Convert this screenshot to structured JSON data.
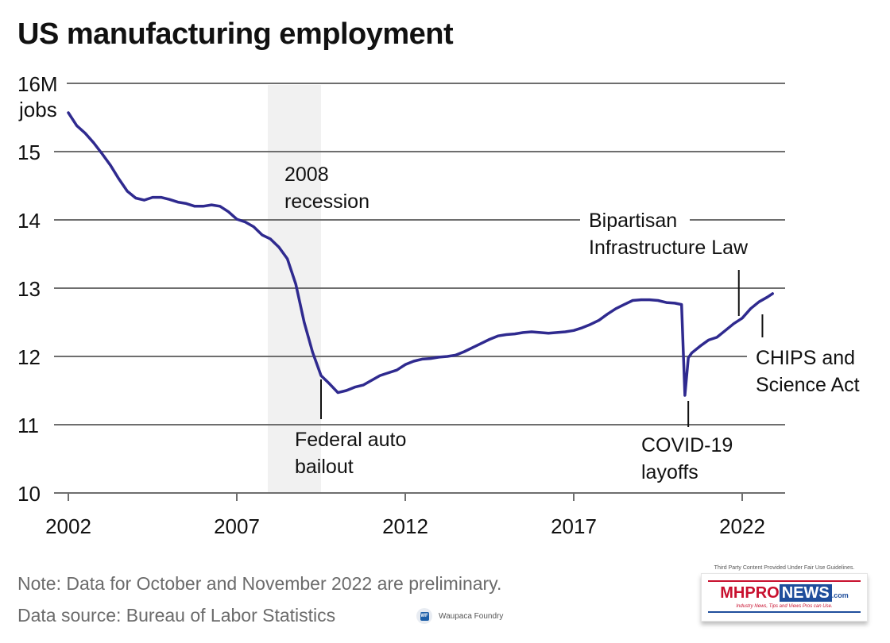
{
  "title": "US manufacturing employment",
  "chart_data": {
    "type": "line",
    "title": "US manufacturing employment",
    "xlabel": "",
    "ylabel": "16M jobs",
    "y_unit_label_top": "16M",
    "y_unit_label_sub": "jobs",
    "xlim": [
      2002,
      2023.2
    ],
    "ylim": [
      10,
      16
    ],
    "yticks": [
      10,
      11,
      12,
      13,
      14,
      15,
      16
    ],
    "ytick_labels": [
      "10",
      "11",
      "12",
      "13",
      "14",
      "15",
      "16M"
    ],
    "xticks": [
      2002,
      2007,
      2012,
      2017,
      2022
    ],
    "xtick_labels": [
      "2002",
      "2007",
      "2012",
      "2017",
      "2022"
    ],
    "grid": "horizontal",
    "line_color": "#2f2a8f",
    "shaded_region": {
      "label": "2008 recession",
      "label_lines": [
        "2008",
        "recession"
      ],
      "start": 2007.92,
      "end": 2009.5,
      "color": "#f1f1f1"
    },
    "series": [
      {
        "name": "Manufacturing employment (millions)",
        "x": [
          2002.0,
          2002.25,
          2002.5,
          2002.75,
          2003.0,
          2003.25,
          2003.5,
          2003.75,
          2004.0,
          2004.25,
          2004.5,
          2004.75,
          2005.0,
          2005.25,
          2005.5,
          2005.75,
          2006.0,
          2006.25,
          2006.5,
          2006.75,
          2007.0,
          2007.25,
          2007.5,
          2007.75,
          2008.0,
          2008.25,
          2008.5,
          2008.75,
          2009.0,
          2009.25,
          2009.5,
          2009.75,
          2010.0,
          2010.25,
          2010.5,
          2010.75,
          2011.0,
          2011.25,
          2011.5,
          2011.75,
          2012.0,
          2012.25,
          2012.5,
          2012.75,
          2013.0,
          2013.25,
          2013.5,
          2013.75,
          2014.0,
          2014.25,
          2014.5,
          2014.75,
          2015.0,
          2015.25,
          2015.5,
          2015.75,
          2016.0,
          2016.25,
          2016.5,
          2016.75,
          2017.0,
          2017.25,
          2017.5,
          2017.75,
          2018.0,
          2018.25,
          2018.5,
          2018.75,
          2019.0,
          2019.25,
          2019.5,
          2019.75,
          2020.0,
          2020.2,
          2020.3,
          2020.4,
          2020.5,
          2020.75,
          2021.0,
          2021.25,
          2021.5,
          2021.75,
          2022.0,
          2022.25,
          2022.5,
          2022.75,
          2022.9
        ],
        "values": [
          15.57,
          15.38,
          15.27,
          15.13,
          14.97,
          14.8,
          14.6,
          14.42,
          14.32,
          14.29,
          14.33,
          14.33,
          14.3,
          14.26,
          14.24,
          14.2,
          14.2,
          14.22,
          14.2,
          14.12,
          14.01,
          13.97,
          13.9,
          13.78,
          13.72,
          13.6,
          13.43,
          13.06,
          12.5,
          12.06,
          11.72,
          11.6,
          11.47,
          11.5,
          11.55,
          11.58,
          11.65,
          11.72,
          11.76,
          11.8,
          11.88,
          11.93,
          11.96,
          11.97,
          11.99,
          12.0,
          12.02,
          12.07,
          12.13,
          12.19,
          12.25,
          12.3,
          12.32,
          12.33,
          12.35,
          12.36,
          12.35,
          12.34,
          12.35,
          12.36,
          12.38,
          12.42,
          12.47,
          12.53,
          12.62,
          12.7,
          12.76,
          12.82,
          12.83,
          12.83,
          12.82,
          12.79,
          12.78,
          12.76,
          11.43,
          11.98,
          12.05,
          12.15,
          12.24,
          12.28,
          12.38,
          12.48,
          12.56,
          12.7,
          12.8,
          12.87,
          12.92
        ]
      }
    ],
    "annotations": [
      {
        "label_lines": [
          "Federal auto",
          "bailout"
        ],
        "x": 2009.5
      },
      {
        "label_lines": [
          "COVID-19",
          "layoffs"
        ],
        "x": 2020.4
      },
      {
        "label_lines": [
          "Bipartisan",
          "Infrastructure Law"
        ],
        "x": 2021.9
      },
      {
        "label_lines": [
          "CHIPS and",
          "Science Act"
        ],
        "x": 2022.6
      }
    ]
  },
  "footer": {
    "note": "Note: Data for October and November 2022 are preliminary.",
    "source": "Data source: Bureau of Labor Statistics",
    "credit": "Waupaca Foundry",
    "credit_logo_text": "WF"
  },
  "watermark": {
    "note": "Third Party Content Provided Under Fair Use Guidelines.",
    "brand_mh": "MH",
    "brand_pro": "PRO",
    "brand_news": "NEWS",
    "brand_com": ".com",
    "tagline": "Industry News, Tips and Views Pros can Use."
  }
}
